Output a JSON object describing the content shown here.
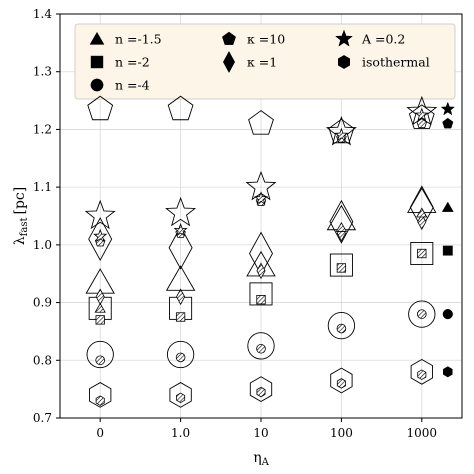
{
  "chart_data": {
    "type": "scatter",
    "title": "",
    "xlabel": "η",
    "xlabel_sub": "A",
    "ylabel": "λ",
    "ylabel_sub": "fast",
    "ylabel_unit": "[pc]",
    "x_categories": [
      "0",
      "1.0",
      "10",
      "100",
      "1000"
    ],
    "ylim": [
      0.7,
      1.4
    ],
    "yticks": [
      "0.7",
      "0.8",
      "0.9",
      "1.0",
      "1.1",
      "1.2",
      "1.3",
      "1.4"
    ],
    "grid": true,
    "legend_position": "top",
    "legend": [
      {
        "label": "n =-1.5",
        "marker": "triangle"
      },
      {
        "label": "n =-2",
        "marker": "square"
      },
      {
        "label": "n =-4",
        "marker": "circle"
      },
      {
        "label": "κ =10",
        "marker": "pentagon"
      },
      {
        "label": "κ =1",
        "marker": "diamond"
      },
      {
        "label": "A =0.2",
        "marker": "star"
      },
      {
        "label": "isothermal",
        "marker": "hexagon"
      }
    ],
    "series": [
      {
        "marker": "pentagon",
        "values": [
          1.235,
          1.235,
          1.21,
          1.195,
          1.22
        ]
      },
      {
        "marker": "star",
        "values": [
          1.05,
          1.055,
          1.1,
          1.195,
          1.23
        ]
      },
      {
        "marker": "diamond",
        "values": [
          1.01,
          0.995,
          0.985,
          1.04,
          1.065
        ]
      },
      {
        "marker": "triangle",
        "values": [
          0.935,
          0.94,
          0.965,
          1.045,
          1.075
        ]
      },
      {
        "marker": "square",
        "values": [
          0.89,
          0.89,
          0.915,
          0.965,
          0.985
        ]
      },
      {
        "marker": "circle",
        "values": [
          0.81,
          0.81,
          0.825,
          0.86,
          0.88
        ]
      },
      {
        "marker": "hexagon",
        "values": [
          0.74,
          0.74,
          0.75,
          0.765,
          0.78
        ]
      }
    ],
    "inner_points": [
      [
        [
          0.87,
          "square"
        ],
        [
          0.89,
          "triangle"
        ],
        [
          0.91,
          "diamond"
        ],
        [
          0.8,
          "circle"
        ],
        [
          0.73,
          "hexagon"
        ],
        [
          1.005,
          "pentagon"
        ],
        [
          1.015,
          "star"
        ]
      ],
      [
        [
          0.875,
          "square"
        ],
        [
          0.91,
          "diamond"
        ],
        [
          0.805,
          "circle"
        ],
        [
          0.735,
          "hexagon"
        ],
        [
          1.02,
          "pentagon"
        ],
        [
          1.025,
          "star"
        ]
      ],
      [
        [
          0.905,
          "square"
        ],
        [
          0.955,
          "diamond"
        ],
        [
          0.82,
          "circle"
        ],
        [
          0.745,
          "hexagon"
        ],
        [
          1.075,
          "pentagon"
        ],
        [
          1.08,
          "star"
        ]
      ],
      [
        [
          0.96,
          "square"
        ],
        [
          1.02,
          "diamond"
        ],
        [
          0.855,
          "circle"
        ],
        [
          0.76,
          "hexagon"
        ],
        [
          1.03,
          "triangle"
        ],
        [
          1.185,
          "pentagon"
        ],
        [
          1.19,
          "star"
        ]
      ],
      [
        [
          0.985,
          "square"
        ],
        [
          1.04,
          "diamond"
        ],
        [
          0.88,
          "circle"
        ],
        [
          0.775,
          "hexagon"
        ],
        [
          1.055,
          "triangle"
        ],
        [
          1.21,
          "pentagon"
        ],
        [
          1.225,
          "star"
        ]
      ]
    ],
    "reference_markers": [
      {
        "marker": "star",
        "y": 1.235
      },
      {
        "marker": "pentagon",
        "y": 1.21
      },
      {
        "marker": "triangle",
        "y": 1.065
      },
      {
        "marker": "square",
        "y": 0.99
      },
      {
        "marker": "circle",
        "y": 0.88
      },
      {
        "marker": "hexagon",
        "y": 0.78
      }
    ]
  }
}
